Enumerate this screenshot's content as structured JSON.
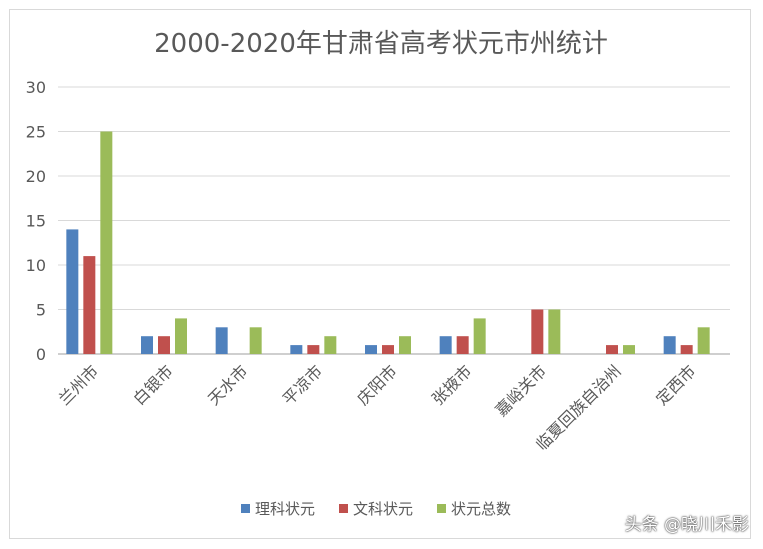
{
  "chart_data": {
    "type": "bar",
    "title": "2000-2020年甘肃省高考状元市州统计",
    "categories": [
      "兰州市",
      "白银市",
      "天水市",
      "平凉市",
      "庆阳市",
      "张掖市",
      "嘉峪关市",
      "临夏回族自治州",
      "定西市"
    ],
    "series": [
      {
        "name": "理科状元",
        "color": "#4f81bd",
        "values": [
          14,
          2,
          3,
          1,
          1,
          2,
          0,
          0,
          2
        ]
      },
      {
        "name": "文科状元",
        "color": "#c0504d",
        "values": [
          11,
          2,
          0,
          1,
          1,
          2,
          5,
          1,
          1
        ]
      },
      {
        "name": "状元总数",
        "color": "#9bbb59",
        "values": [
          25,
          4,
          3,
          2,
          2,
          4,
          5,
          1,
          3
        ]
      }
    ],
    "ylim": [
      0,
      30
    ],
    "yticks": [
      0,
      5,
      10,
      15,
      20,
      25,
      30
    ],
    "grid": true,
    "legend": "bottom"
  },
  "watermark": "头条 @晓川禾影"
}
